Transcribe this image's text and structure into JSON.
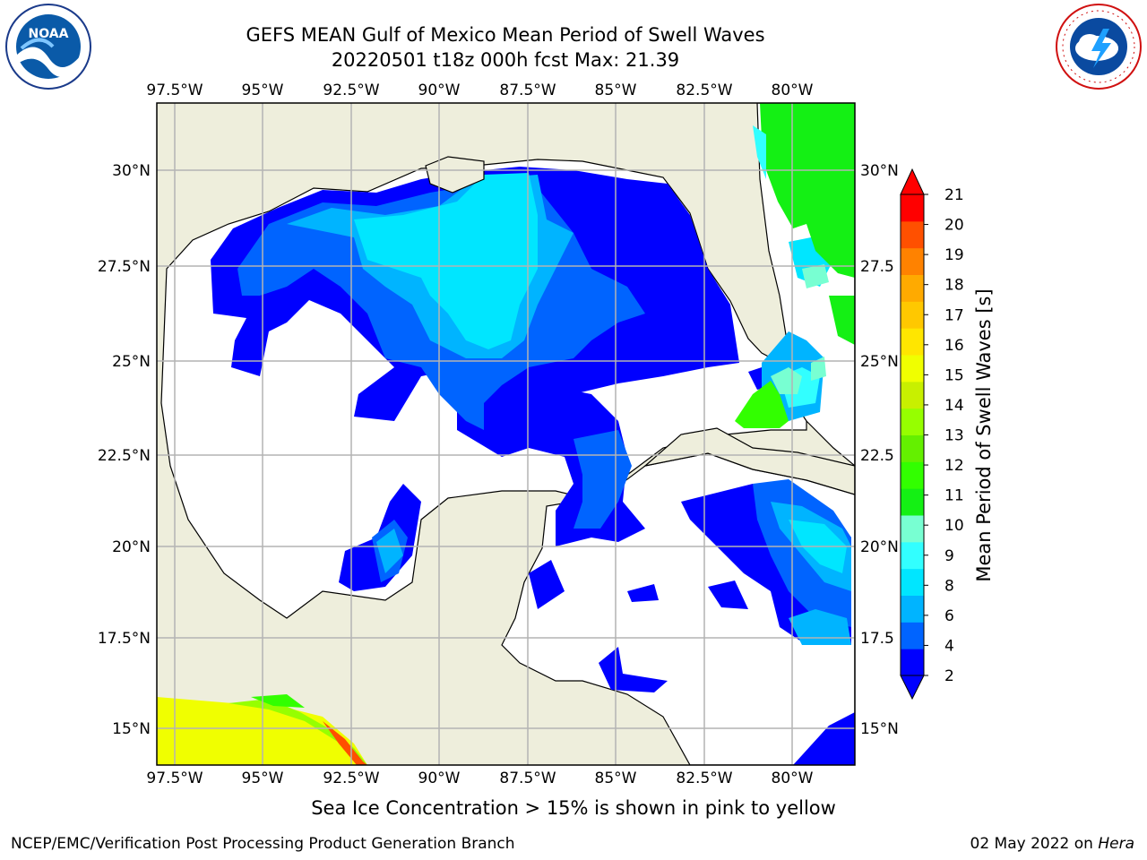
{
  "header": {
    "title_line1": "GEFS MEAN Gulf of Mexico Mean Period of Swell Waves",
    "title_line2": "20220501 t18z 000h fcst   Max: 21.39"
  },
  "logos": {
    "left": {
      "icon": "noaa-logo-icon",
      "text": "NOAA"
    },
    "right": {
      "icon": "nws-logo-icon",
      "text": "NATIONAL WEATHER SERVICE"
    }
  },
  "chart_data": {
    "type": "heatmap",
    "title": "GEFS MEAN Gulf of Mexico Mean Period of Swell Waves",
    "lon_ticks": [
      "97.5°W",
      "95°W",
      "92.5°W",
      "90°W",
      "87.5°W",
      "85°W",
      "82.5°W",
      "80°W"
    ],
    "lat_ticks": [
      "30°N",
      "27.5°N",
      "25°N",
      "22.5°N",
      "20°N",
      "17.5°N",
      "15°N"
    ],
    "right_lat_ticks": [
      "30°N",
      "27.5",
      "25°N",
      "22.5",
      "20°N",
      "17.5",
      "15°N"
    ],
    "lon_range": [
      -98,
      -79
    ],
    "lat_range": [
      14,
      31.8
    ],
    "grid": true,
    "colorbar": {
      "label": "Mean Period of Swell Waves [s]",
      "ticks": [
        "2",
        "4",
        "6",
        "8",
        "9",
        "10",
        "11",
        "12",
        "13",
        "14",
        "15",
        "16",
        "17",
        "18",
        "19",
        "20",
        "21"
      ],
      "colors": [
        "#0000ff",
        "#0064ff",
        "#00b4ff",
        "#00e6ff",
        "#32ffff",
        "#78ffd2",
        "#14f014",
        "#32ff00",
        "#64f000",
        "#96ff00",
        "#c8f000",
        "#f0ff00",
        "#ffe600",
        "#ffc800",
        "#ffaa00",
        "#ff8200",
        "#ff5000",
        "#ff0000"
      ]
    },
    "land_color": "#eeeedc",
    "ocean_color": "#ffffff"
  },
  "footer": {
    "note": "Sea Ice Concentration > 15% is shown in pink to yellow",
    "credit_left": "NCEP/EMC/Verification Post Processing Product Generation Branch",
    "credit_date": "02 May 2022 on ",
    "credit_machine": "Hera"
  }
}
